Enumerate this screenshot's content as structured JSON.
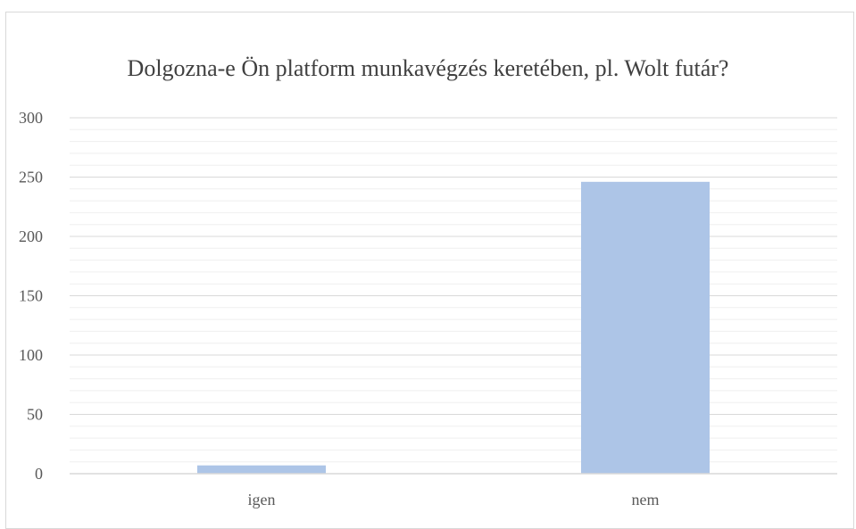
{
  "chart_data": {
    "type": "bar",
    "title": "Dolgozna-e Ön platform munkavégzés keretében, pl. Wolt futár?",
    "categories": [
      "igen",
      "nem"
    ],
    "values": [
      7,
      246
    ],
    "ylim": [
      0,
      300
    ],
    "yticks": [
      0,
      50,
      100,
      150,
      200,
      250,
      300
    ],
    "ytick_labels": [
      "0",
      "50",
      "100",
      "150",
      "200",
      "250",
      "300"
    ],
    "xlabel": "",
    "ylabel": "",
    "grid": true,
    "minor_grid": true,
    "legend": "none",
    "bar_color": "#adc5e7"
  }
}
